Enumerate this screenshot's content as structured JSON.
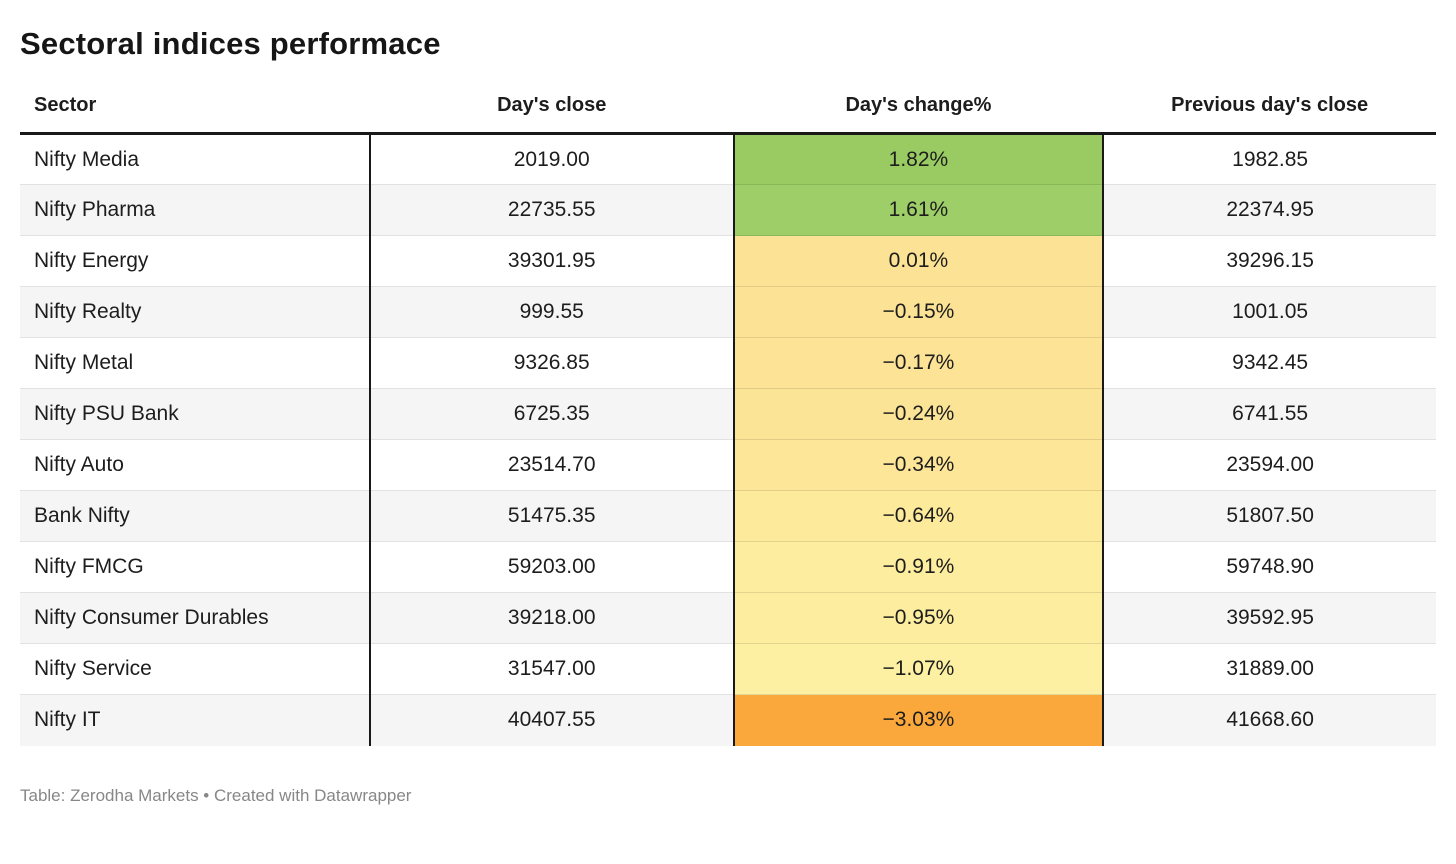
{
  "title": "Sectoral indices performace",
  "table": {
    "columns": [
      "Sector",
      "Day's close",
      "Day's change%",
      "Previous day's close"
    ],
    "rows": [
      {
        "sector": "Nifty Media",
        "close": "2019.00",
        "change": "1.82%",
        "prev": "1982.85",
        "color": "#9acb62"
      },
      {
        "sector": "Nifty Pharma",
        "close": "22735.55",
        "change": "1.61%",
        "prev": "22374.95",
        "color": "#9dce67"
      },
      {
        "sector": "Nifty Energy",
        "close": "39301.95",
        "change": "0.01%",
        "prev": "39296.15",
        "color": "#fce294"
      },
      {
        "sector": "Nifty Realty",
        "close": "999.55",
        "change": "−0.15%",
        "prev": "1001.05",
        "color": "#fce294"
      },
      {
        "sector": "Nifty Metal",
        "close": "9326.85",
        "change": "−0.17%",
        "prev": "9342.45",
        "color": "#fce395"
      },
      {
        "sector": "Nifty PSU Bank",
        "close": "6725.35",
        "change": "−0.24%",
        "prev": "6741.55",
        "color": "#fce496"
      },
      {
        "sector": "Nifty Auto",
        "close": "23514.70",
        "change": "−0.34%",
        "prev": "23594.00",
        "color": "#fde698"
      },
      {
        "sector": "Bank Nifty",
        "close": "51475.35",
        "change": "−0.64%",
        "prev": "51807.50",
        "color": "#fdea9b"
      },
      {
        "sector": "Nifty FMCG",
        "close": "59203.00",
        "change": "−0.91%",
        "prev": "59748.90",
        "color": "#fded9e"
      },
      {
        "sector": "Nifty Consumer Durables",
        "close": "39218.00",
        "change": "−0.95%",
        "prev": "39592.95",
        "color": "#fdee9f"
      },
      {
        "sector": "Nifty Service",
        "close": "31547.00",
        "change": "−1.07%",
        "prev": "31889.00",
        "color": "#fdf0a2"
      },
      {
        "sector": "Nifty IT",
        "close": "40407.55",
        "change": "−3.03%",
        "prev": "41668.60",
        "color": "#faa83c"
      }
    ]
  },
  "footer": "Table: Zerodha Markets • Created with Datawrapper",
  "colors": {
    "positive_green": "#9acb62",
    "neutral_yellow": "#fce294",
    "mild_negative_yellow": "#fdf0a2",
    "strong_negative_orange": "#faa83c",
    "header_border": "#191919",
    "alt_row_bg": "#f5f5f5",
    "footer_text": "#878787"
  },
  "chart_data": {
    "type": "table",
    "title": "Sectoral indices performace",
    "columns": [
      "Sector",
      "Day's close",
      "Day's change%",
      "Previous day's close"
    ],
    "rows": [
      [
        "Nifty Media",
        2019.0,
        1.82,
        1982.85
      ],
      [
        "Nifty Pharma",
        22735.55,
        1.61,
        22374.95
      ],
      [
        "Nifty Energy",
        39301.95,
        0.01,
        39296.15
      ],
      [
        "Nifty Realty",
        999.55,
        -0.15,
        1001.05
      ],
      [
        "Nifty Metal",
        9326.85,
        -0.17,
        9342.45
      ],
      [
        "Nifty PSU Bank",
        6725.35,
        -0.24,
        6741.55
      ],
      [
        "Nifty Auto",
        23514.7,
        -0.34,
        23594.0
      ],
      [
        "Bank Nifty",
        51475.35,
        -0.64,
        51807.5
      ],
      [
        "Nifty FMCG",
        59203.0,
        -0.91,
        59748.9
      ],
      [
        "Nifty Consumer Durables",
        39218.0,
        -0.95,
        39592.95
      ],
      [
        "Nifty Service",
        31547.0,
        -1.07,
        31889.0
      ],
      [
        "Nifty IT",
        40407.55,
        -3.03,
        41668.6
      ]
    ],
    "notes": "Day's change% column is heat-colored: green for positive, yellow gradient toward pale for small negatives, orange for large negative"
  }
}
